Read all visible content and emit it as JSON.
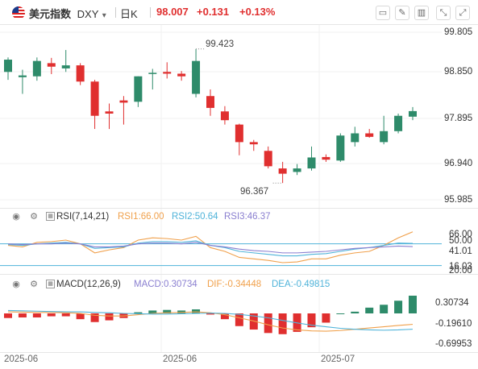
{
  "header": {
    "symbol_name": "美元指数",
    "symbol_code": "DXY",
    "caret": "▾",
    "period": "日K",
    "price": "98.007",
    "change": "+0.131",
    "change_pct": "+0.13%",
    "icons": [
      "chart-style-icon",
      "draw-tool-icon",
      "indicator-icon",
      "compare-icon",
      "fullscreen-icon"
    ]
  },
  "main_chart": {
    "y_ticks": [
      "99.805",
      "98.850",
      "97.895",
      "96.940",
      "95.985"
    ],
    "high_label": "99.423",
    "low_label": "96.367"
  },
  "rsi": {
    "name": "RSI(7,14,21)",
    "rsi1": "RSI1:66.00",
    "rsi2": "RSI2:50.64",
    "rsi3": "RSI3:46.37",
    "y_ticks": [
      "66.00",
      "50.00",
      "41.01",
      "20.00"
    ],
    "overlap_tick": "16.03"
  },
  "macd": {
    "name": "MACD(12,26,9)",
    "macd": "MACD:0.30734",
    "dif": "DIF:-0.34448",
    "dea": "DEA:-0.49815",
    "y_ticks": [
      "0.30734",
      "-0.19610",
      "-0.69953"
    ]
  },
  "x_axis": [
    "2025-06",
    "2025-06",
    "2025-07"
  ],
  "colors": {
    "up": "#2e8b6a",
    "down": "#e02f2f",
    "rsi1": "#f0a04b",
    "rsi2": "#4fb3d9",
    "rsi3": "#8a7fd0",
    "dif": "#f0a04b",
    "dea": "#4fb3d9"
  },
  "chart_data": {
    "type": "candlestick",
    "price_range": [
      95.985,
      99.805
    ],
    "candles": [
      {
        "o": 98.9,
        "h": 99.23,
        "l": 98.72,
        "c": 99.18
      },
      {
        "o": 98.78,
        "h": 98.95,
        "l": 98.4,
        "c": 98.82
      },
      {
        "o": 98.8,
        "h": 99.23,
        "l": 98.7,
        "c": 99.15
      },
      {
        "o": 99.1,
        "h": 99.22,
        "l": 98.85,
        "c": 99.02
      },
      {
        "o": 98.98,
        "h": 99.4,
        "l": 98.9,
        "c": 99.05
      },
      {
        "o": 99.05,
        "h": 99.1,
        "l": 98.6,
        "c": 98.68
      },
      {
        "o": 98.68,
        "h": 98.72,
        "l": 97.6,
        "c": 97.9
      },
      {
        "o": 98.0,
        "h": 98.18,
        "l": 97.6,
        "c": 97.95
      },
      {
        "o": 98.25,
        "h": 98.35,
        "l": 97.7,
        "c": 98.2
      },
      {
        "o": 98.22,
        "h": 98.8,
        "l": 98.1,
        "c": 98.8
      },
      {
        "o": 98.88,
        "h": 98.97,
        "l": 98.5,
        "c": 98.88
      },
      {
        "o": 98.9,
        "h": 99.12,
        "l": 98.75,
        "c": 98.86
      },
      {
        "o": 98.86,
        "h": 98.92,
        "l": 98.7,
        "c": 98.8
      },
      {
        "o": 98.4,
        "h": 99.423,
        "l": 98.32,
        "c": 99.15
      },
      {
        "o": 98.35,
        "h": 98.5,
        "l": 97.9,
        "c": 98.08
      },
      {
        "o": 98.0,
        "h": 98.12,
        "l": 97.7,
        "c": 97.8
      },
      {
        "o": 97.7,
        "h": 97.72,
        "l": 97.0,
        "c": 97.3
      },
      {
        "o": 97.3,
        "h": 97.35,
        "l": 97.1,
        "c": 97.25
      },
      {
        "o": 97.1,
        "h": 97.2,
        "l": 96.7,
        "c": 96.75
      },
      {
        "o": 96.7,
        "h": 96.85,
        "l": 96.367,
        "c": 96.58
      },
      {
        "o": 96.62,
        "h": 96.8,
        "l": 96.55,
        "c": 96.7
      },
      {
        "o": 96.7,
        "h": 97.2,
        "l": 96.65,
        "c": 96.95
      },
      {
        "o": 96.96,
        "h": 97.02,
        "l": 96.85,
        "c": 96.9
      },
      {
        "o": 96.88,
        "h": 97.5,
        "l": 96.85,
        "c": 97.45
      },
      {
        "o": 97.3,
        "h": 97.65,
        "l": 97.2,
        "c": 97.5
      },
      {
        "o": 97.5,
        "h": 97.6,
        "l": 97.4,
        "c": 97.42
      },
      {
        "o": 97.3,
        "h": 97.9,
        "l": 97.25,
        "c": 97.55
      },
      {
        "o": 97.55,
        "h": 97.95,
        "l": 97.5,
        "c": 97.9
      },
      {
        "o": 97.88,
        "h": 98.1,
        "l": 97.8,
        "c": 98.007
      }
    ],
    "rsi_series": [
      {
        "name": "RSI1",
        "values": [
          48,
          46,
          52,
          53,
          55,
          50,
          38,
          42,
          45,
          55,
          58,
          57,
          55,
          60,
          45,
          40,
          32,
          30,
          28,
          25,
          26,
          30,
          30,
          35,
          38,
          40,
          48,
          58,
          66
        ]
      },
      {
        "name": "RSI2",
        "values": [
          49,
          48,
          50,
          51,
          52,
          50,
          44,
          45,
          46,
          51,
          53,
          53,
          52,
          54,
          48,
          45,
          40,
          38,
          36,
          34,
          34,
          36,
          37,
          40,
          43,
          45,
          48,
          51,
          50.64
        ]
      },
      {
        "name": "RSI3",
        "values": [
          50,
          49,
          50,
          50,
          51,
          50,
          46,
          46,
          47,
          50,
          51,
          51,
          50,
          52,
          48,
          46,
          43,
          41,
          40,
          38,
          38,
          39,
          40,
          42,
          44,
          45,
          46,
          47,
          46.37
        ]
      }
    ],
    "macd_bars": [
      -0.08,
      -0.07,
      -0.07,
      -0.05,
      -0.05,
      -0.1,
      -0.15,
      -0.12,
      -0.08,
      0.02,
      0.05,
      0.06,
      0.05,
      0.07,
      -0.02,
      -0.1,
      -0.22,
      -0.28,
      -0.34,
      -0.36,
      -0.32,
      -0.24,
      -0.16,
      0.0,
      0.03,
      0.1,
      0.15,
      0.22,
      0.30734
    ],
    "dif": [
      0.05,
      0.04,
      0.03,
      0.03,
      0.02,
      0.0,
      -0.06,
      -0.08,
      -0.08,
      -0.04,
      0.0,
      0.02,
      0.03,
      0.05,
      0.02,
      -0.04,
      -0.14,
      -0.24,
      -0.36,
      -0.46,
      -0.52,
      -0.55,
      -0.56,
      -0.54,
      -0.5,
      -0.46,
      -0.42,
      -0.38,
      -0.34448
    ],
    "dea": [
      0.09,
      0.08,
      0.07,
      0.06,
      0.05,
      0.05,
      0.03,
      0.02,
      0.0,
      -0.01,
      -0.02,
      -0.02,
      -0.01,
      0.0,
      0.01,
      0.0,
      -0.03,
      -0.08,
      -0.14,
      -0.22,
      -0.3,
      -0.37,
      -0.42,
      -0.47,
      -0.5,
      -0.52,
      -0.53,
      -0.52,
      -0.49815
    ]
  }
}
